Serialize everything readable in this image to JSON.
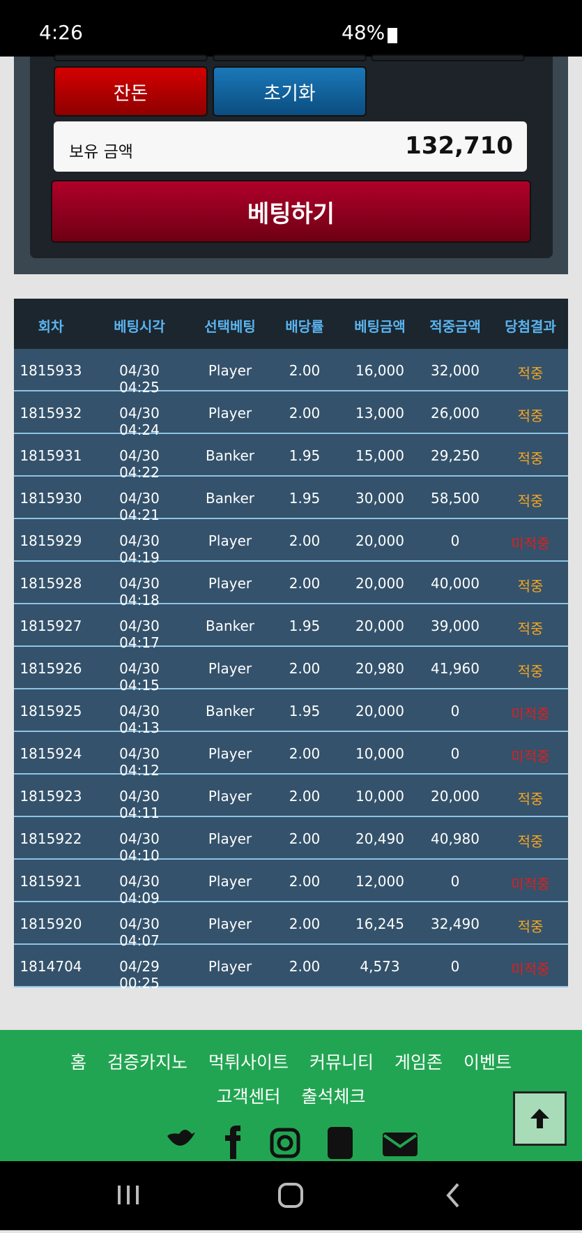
{
  "status_bar": {
    "time": "4:26",
    "battery": "48%"
  },
  "panel": {
    "buttons": [
      "잔돈",
      "초기화"
    ],
    "balance_label": "보유 금액",
    "balance": "132,710",
    "bet_button": "베팅하기"
  },
  "table": {
    "headers": [
      "회차",
      "베팅시각",
      "선택베팅",
      "배당률",
      "베팅금액",
      "적중금액",
      "당첨결과"
    ],
    "rows": [
      [
        "1815933",
        "04/30 04:25",
        "Player",
        "2.00",
        "16,000",
        "32,000",
        "적중"
      ],
      [
        "1815932",
        "04/30 04:24",
        "Player",
        "2.00",
        "13,000",
        "26,000",
        "적중"
      ],
      [
        "1815931",
        "04/30 04:22",
        "Banker",
        "1.95",
        "15,000",
        "29,250",
        "적중"
      ],
      [
        "1815930",
        "04/30 04:21",
        "Banker",
        "1.95",
        "30,000",
        "58,500",
        "적중"
      ],
      [
        "1815929",
        "04/30 04:19",
        "Player",
        "2.00",
        "20,000",
        "0",
        "미적중"
      ],
      [
        "1815928",
        "04/30 04:18",
        "Player",
        "2.00",
        "20,000",
        "40,000",
        "적중"
      ],
      [
        "1815927",
        "04/30 04:17",
        "Banker",
        "1.95",
        "20,000",
        "39,000",
        "적중"
      ],
      [
        "1815926",
        "04/30 04:15",
        "Player",
        "2.00",
        "20,980",
        "41,960",
        "적중"
      ],
      [
        "1815925",
        "04/30 04:13",
        "Banker",
        "1.95",
        "20,000",
        "0",
        "미적중"
      ],
      [
        "1815924",
        "04/30 04:12",
        "Player",
        "2.00",
        "10,000",
        "0",
        "미적중"
      ],
      [
        "1815923",
        "04/30 04:11",
        "Player",
        "2.00",
        "10,000",
        "20,000",
        "적중"
      ],
      [
        "1815922",
        "04/30 04:10",
        "Player",
        "2.00",
        "20,490",
        "40,980",
        "적중"
      ],
      [
        "1815921",
        "04/30 04:09",
        "Player",
        "2.00",
        "12,000",
        "0",
        "미적중"
      ],
      [
        "1815920",
        "04/30 04:07",
        "Player",
        "2.00",
        "16,245",
        "32,490",
        "적중"
      ],
      [
        "1814704",
        "04/29 00:25",
        "Player",
        "2.00",
        "4,573",
        "0",
        "미적중"
      ]
    ]
  },
  "footer": {
    "links": [
      "홈",
      "검증카지노",
      "먹튀사이트",
      "커뮤니티",
      "게임존",
      "이벤트",
      "고객센터",
      "출석체크"
    ]
  }
}
